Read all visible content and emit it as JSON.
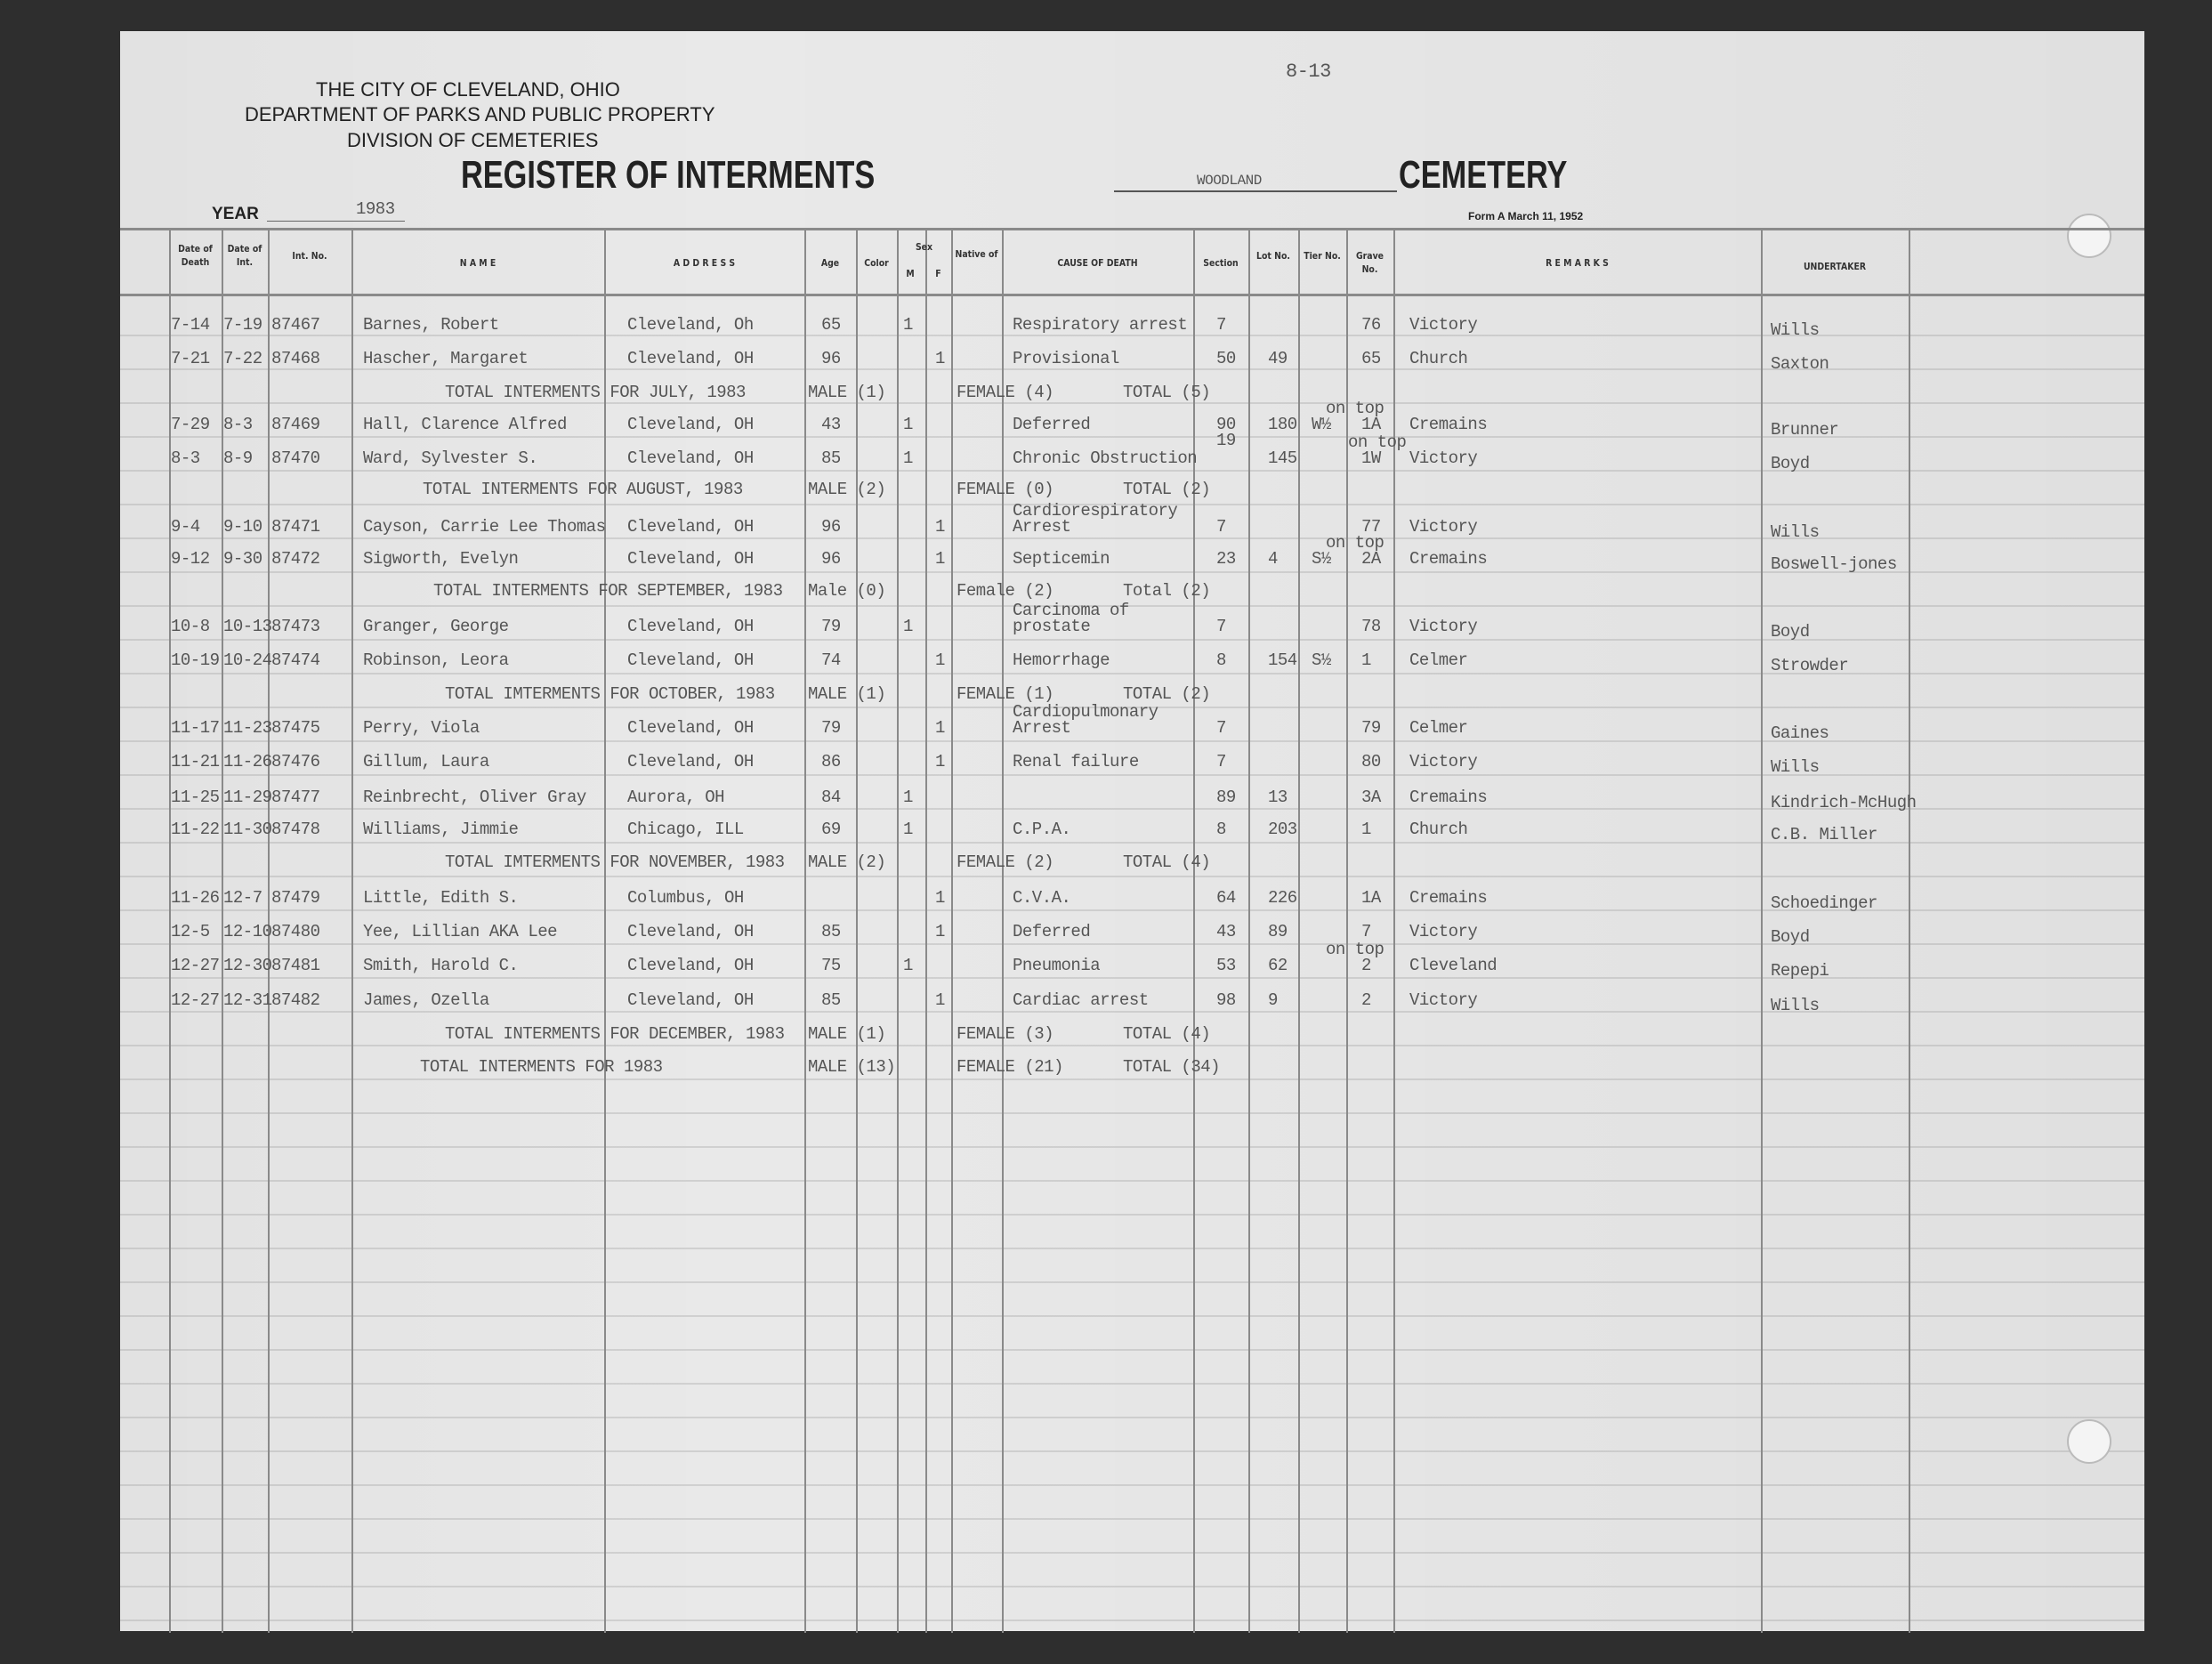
{
  "header": {
    "city": "THE CITY OF CLEVELAND, OHIO",
    "department": "DEPARTMENT OF PARKS AND PUBLIC PROPERTY",
    "division": "DIVISION OF CEMETERIES",
    "page_number": "8-13",
    "title": "REGISTER OF INTERMENTS",
    "cemetery_name": "WOODLAND",
    "cemetery_label": "CEMETERY",
    "year_label": "YEAR",
    "year_value": "1983",
    "form": "Form A March 11, 1952"
  },
  "columns": {
    "date_of_death": "Date of Death",
    "date_of_int": "Date of Int.",
    "int_no": "Int. No.",
    "name": "N A M E",
    "address": "A D D R E S S",
    "age": "Age",
    "color": "Color",
    "sex": "Sex",
    "sex_m": "M",
    "sex_f": "F",
    "native_of": "Native of",
    "cause": "CAUSE OF DEATH",
    "section": "Section",
    "lot": "Lot No.",
    "tier": "Tier No.",
    "grave": "Grave No.",
    "remarks": "R E M A R K S",
    "undertaker": "UNDERTAKER"
  },
  "rows": [
    {
      "type": "entry",
      "death": "7-14",
      "int": "7-19",
      "no": "87467",
      "name": "Barnes, Robert",
      "address": "Cleveland, Oh",
      "age": "65",
      "m": "1",
      "f": "",
      "cause": "Respiratory arrest",
      "cause2": "",
      "section": "7",
      "section2": "",
      "lot": "",
      "tier": "",
      "grave": "76",
      "grave_note": "",
      "remarks": "Victory",
      "undertaker": "Wills"
    },
    {
      "type": "entry",
      "death": "7-21",
      "int": "7-22",
      "no": "87468",
      "name": "Hascher, Margaret",
      "address": "Cleveland, OH",
      "age": "96",
      "m": "",
      "f": "1",
      "cause": "Provisional",
      "cause2": "",
      "section": "50",
      "section2": "",
      "lot": "49",
      "tier": "",
      "grave": "65",
      "grave_note": "",
      "remarks": "Church",
      "undertaker": "Saxton"
    },
    {
      "type": "total",
      "label": "TOTAL INTERMENTS FOR JULY, 1983",
      "male": "MALE (1)",
      "female": "FEMALE (4)",
      "total": "TOTAL (5)"
    },
    {
      "type": "entry",
      "death": "7-29",
      "int": "8-3",
      "no": "87469",
      "name": "Hall, Clarence Alfred",
      "address": "Cleveland, OH",
      "age": "43",
      "m": "1",
      "f": "",
      "cause": "Deferred",
      "cause2": "",
      "section": "90",
      "section2": "19",
      "lot": "180",
      "tier": "W½",
      "grave": "1A",
      "grave_note": "on top",
      "remarks": "Cremains",
      "undertaker": "Brunner"
    },
    {
      "type": "entry",
      "death": "8-3",
      "int": "8-9",
      "no": "87470",
      "name": "Ward, Sylvester  S.",
      "address": "Cleveland, OH",
      "age": "85",
      "m": "1",
      "f": "",
      "cause": "Chronic Obstruction",
      "cause2": "",
      "section": "",
      "section2": "",
      "lot": "145",
      "tier": "",
      "grave": "1W",
      "grave_note": "on top",
      "remarks": "Victory",
      "undertaker": "Boyd"
    },
    {
      "type": "total",
      "label": "TOTAL INTERMENTS FOR AUGUST, 1983",
      "male": "MALE (2)",
      "female": "FEMALE (0)",
      "total": "TOTAL (2)"
    },
    {
      "type": "entry",
      "death": "9-4",
      "int": "9-10",
      "no": "87471",
      "name": "Cayson, Carrie Lee Thomas",
      "address": "Cleveland, OH",
      "age": "96",
      "m": "",
      "f": "1",
      "cause": "Arrest",
      "cause2": "Cardiorespiratory",
      "section": "7",
      "section2": "",
      "lot": "",
      "tier": "",
      "grave": "77",
      "grave_note": "",
      "remarks": "Victory",
      "undertaker": "Wills"
    },
    {
      "type": "entry",
      "death": "9-12",
      "int": "9-30",
      "no": "87472",
      "name": "Sigworth, Evelyn",
      "address": "Cleveland, OH",
      "age": "96",
      "m": "",
      "f": "1",
      "cause": "Septicemin",
      "cause2": "",
      "section": "23",
      "section2": "",
      "lot": "4",
      "tier": "S½",
      "grave": "2A",
      "grave_note": "on top",
      "remarks": "Cremains",
      "undertaker": "Boswell-jones"
    },
    {
      "type": "total",
      "label": "TOTAL INTERMENTS FOR SEPTEMBER, 1983",
      "male": "Male (0)",
      "female": "Female (2)",
      "total": "Total (2)"
    },
    {
      "type": "entry",
      "death": "10-8",
      "int": "10-13",
      "no": "87473",
      "name": "Granger, George",
      "address": "Cleveland, OH",
      "age": "79",
      "m": "1",
      "f": "",
      "cause": "prostate",
      "cause2": "Carcinoma of",
      "section": "7",
      "section2": "",
      "lot": "",
      "tier": "",
      "grave": "78",
      "grave_note": "",
      "remarks": "Victory",
      "undertaker": "Boyd"
    },
    {
      "type": "entry",
      "death": "10-19",
      "int": "10-24",
      "no": "87474",
      "name": "Robinson, Leora",
      "address": "Cleveland, OH",
      "age": "74",
      "m": "",
      "f": "1",
      "cause": "Hemorrhage",
      "cause2": "",
      "section": "8",
      "section2": "",
      "lot": "154",
      "tier": "S½",
      "grave": "1",
      "grave_note": "",
      "remarks": "Celmer",
      "undertaker": "Strowder"
    },
    {
      "type": "total",
      "label": "TOTAL IMTERMENTS FOR OCTOBER, 1983",
      "male": "MALE (1)",
      "female": "FEMALE (1)",
      "total": "TOTAL (2)"
    },
    {
      "type": "entry",
      "death": "11-17",
      "int": "11-23",
      "no": "87475",
      "name": "Perry, Viola",
      "address": "Cleveland, OH",
      "age": "79",
      "m": "",
      "f": "1",
      "cause": "Arrest",
      "cause2": "Cardiopulmonary",
      "section": "7",
      "section2": "",
      "lot": "",
      "tier": "",
      "grave": "79",
      "grave_note": "",
      "remarks": "Celmer",
      "undertaker": "Gaines"
    },
    {
      "type": "entry",
      "death": "11-21",
      "int": "11-26",
      "no": "87476",
      "name": "Gillum, Laura",
      "address": "Cleveland, OH",
      "age": "86",
      "m": "",
      "f": "1",
      "cause": "Renal failure",
      "cause2": "",
      "section": "7",
      "section2": "",
      "lot": "",
      "tier": "",
      "grave": "80",
      "grave_note": "",
      "remarks": "Victory",
      "undertaker": "Wills"
    },
    {
      "type": "entry",
      "death": "11-25",
      "int": "11-29",
      "no": "87477",
      "name": "Reinbrecht, Oliver Gray",
      "address": "Aurora, OH",
      "age": "84",
      "m": "1",
      "f": "",
      "cause": "",
      "cause2": "",
      "section": "89",
      "section2": "",
      "lot": "13",
      "tier": "",
      "grave": "3A",
      "grave_note": "",
      "remarks": "Cremains",
      "undertaker": "Kindrich-McHugh"
    },
    {
      "type": "entry",
      "death": "11-22",
      "int": "11-30",
      "no": "87478",
      "name": "Williams, Jimmie",
      "address": "Chicago, ILL",
      "age": "69",
      "m": "1",
      "f": "",
      "cause": "C.P.A.",
      "cause2": "",
      "section": "8",
      "section2": "",
      "lot": "203",
      "tier": "",
      "grave": "1",
      "grave_note": "",
      "remarks": "Church",
      "undertaker": "C.B. Miller"
    },
    {
      "type": "total",
      "label": "TOTAL IMTERMENTS FOR NOVEMBER, 1983",
      "male": "MALE (2)",
      "female": "FEMALE (2)",
      "total": "TOTAL (4)"
    },
    {
      "type": "entry",
      "death": "11-26",
      "int": "12-7",
      "no": "87479",
      "name": "Little, Edith S.",
      "address": "Columbus, OH",
      "age": "",
      "m": "",
      "f": "1",
      "cause": "C.V.A.",
      "cause2": "",
      "section": "64",
      "section2": "",
      "lot": "226",
      "tier": "",
      "grave": "1A",
      "grave_note": "",
      "remarks": "Cremains",
      "undertaker": "Schoedinger"
    },
    {
      "type": "entry",
      "death": "12-5",
      "int": "12-10",
      "no": "87480",
      "name": "Yee, Lillian AKA Lee",
      "address": "Cleveland, OH",
      "age": "85",
      "m": "",
      "f": "1",
      "cause": "Deferred",
      "cause2": "",
      "section": "43",
      "section2": "",
      "lot": "89",
      "tier": "",
      "grave": "7",
      "grave_note": "",
      "remarks": "Victory",
      "undertaker": "Boyd"
    },
    {
      "type": "entry",
      "death": "12-27",
      "int": "12-30",
      "no": "87481",
      "name": "Smith, Harold C.",
      "address": "Cleveland, OH",
      "age": "75",
      "m": "1",
      "f": "",
      "cause": "Pneumonia",
      "cause2": "",
      "section": "53",
      "section2": "",
      "lot": "62",
      "tier": "",
      "grave": "2",
      "grave_note": "on top",
      "remarks": "Cleveland",
      "undertaker": "Repepi"
    },
    {
      "type": "entry",
      "death": "12-27",
      "int": "12-31",
      "no": "87482",
      "name": "James, Ozella",
      "address": "Cleveland, OH",
      "age": "85",
      "m": "",
      "f": "1",
      "cause": "Cardiac arrest",
      "cause2": "",
      "section": "98",
      "section2": "",
      "lot": "9",
      "tier": "",
      "grave": "2",
      "grave_note": "",
      "remarks": "Victory",
      "undertaker": "Wills"
    },
    {
      "type": "total",
      "label": "TOTAL INTERMENTS FOR DECEMBER, 1983",
      "male": "MALE (1)",
      "female": "FEMALE (3)",
      "total": "TOTAL (4)"
    },
    {
      "type": "total",
      "label": "TOTAL INTERMENTS FOR 1983",
      "male": "MALE (13)",
      "female": "FEMALE (21)",
      "total": "TOTAL (34)"
    }
  ]
}
